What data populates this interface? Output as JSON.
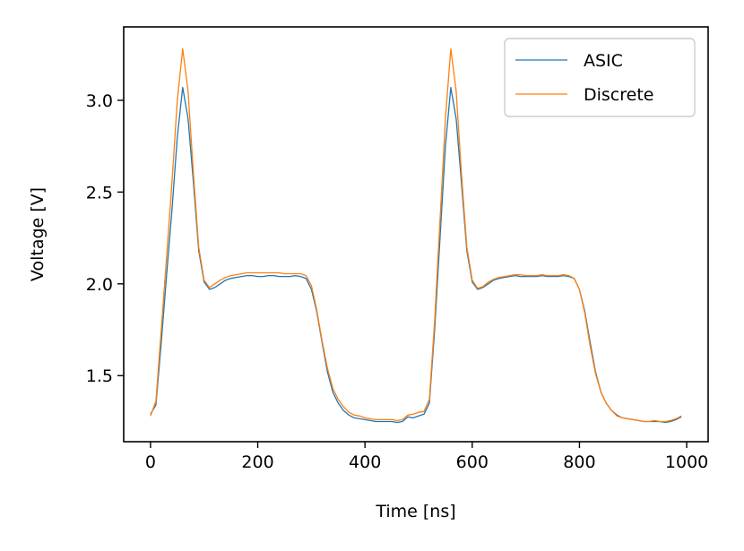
{
  "chart_data": {
    "type": "line",
    "xlabel": "Time [ns]",
    "ylabel": "Voltage [V]",
    "xlim": [
      -50,
      1040
    ],
    "ylim": [
      1.14,
      3.4
    ],
    "xticks": [
      0,
      200,
      400,
      600,
      800,
      1000
    ],
    "yticks": [
      1.5,
      2.0,
      2.5,
      3.0
    ],
    "xtick_labels": [
      "0",
      "200",
      "400",
      "600",
      "800",
      "1000"
    ],
    "ytick_labels": [
      "1.5",
      "2.0",
      "2.5",
      "3.0"
    ],
    "legend_position": "top-right",
    "grid": false,
    "series": [
      {
        "name": "ASIC",
        "color": "#1f77b4",
        "x": [
          0,
          10,
          20,
          30,
          40,
          50,
          60,
          70,
          80,
          90,
          100,
          110,
          120,
          130,
          140,
          150,
          160,
          170,
          180,
          190,
          200,
          210,
          220,
          230,
          240,
          250,
          260,
          270,
          280,
          290,
          300,
          310,
          320,
          330,
          340,
          350,
          360,
          370,
          380,
          390,
          400,
          410,
          420,
          430,
          440,
          450,
          460,
          470,
          480,
          490,
          500,
          510,
          520,
          530,
          540,
          550,
          560,
          570,
          580,
          590,
          600,
          610,
          620,
          630,
          640,
          650,
          660,
          670,
          680,
          690,
          700,
          710,
          720,
          730,
          740,
          750,
          760,
          770,
          780,
          790,
          800,
          810,
          820,
          830,
          840,
          850,
          860,
          870,
          880,
          890,
          900,
          910,
          920,
          930,
          940,
          950,
          960,
          970,
          980,
          990
        ],
        "y": [
          1.29,
          1.34,
          1.68,
          2.05,
          2.4,
          2.8,
          3.07,
          2.9,
          2.55,
          2.18,
          2.01,
          1.97,
          1.98,
          2.0,
          2.02,
          2.03,
          2.035,
          2.04,
          2.045,
          2.045,
          2.04,
          2.04,
          2.045,
          2.045,
          2.04,
          2.04,
          2.04,
          2.045,
          2.04,
          2.03,
          1.97,
          1.85,
          1.68,
          1.52,
          1.41,
          1.35,
          1.31,
          1.285,
          1.27,
          1.265,
          1.26,
          1.255,
          1.25,
          1.25,
          1.25,
          1.25,
          1.245,
          1.25,
          1.275,
          1.27,
          1.28,
          1.29,
          1.35,
          1.75,
          2.25,
          2.75,
          3.07,
          2.9,
          2.55,
          2.18,
          2.01,
          1.97,
          1.98,
          2.0,
          2.02,
          2.03,
          2.035,
          2.04,
          2.045,
          2.04,
          2.04,
          2.04,
          2.04,
          2.045,
          2.04,
          2.04,
          2.04,
          2.045,
          2.04,
          2.03,
          1.97,
          1.85,
          1.68,
          1.52,
          1.41,
          1.35,
          1.31,
          1.285,
          1.27,
          1.265,
          1.26,
          1.255,
          1.25,
          1.25,
          1.25,
          1.25,
          1.245,
          1.25,
          1.26,
          1.275
        ]
      },
      {
        "name": "Discrete",
        "color": "#ff7f0e",
        "x": [
          0,
          10,
          20,
          30,
          40,
          50,
          60,
          70,
          80,
          90,
          100,
          110,
          120,
          130,
          140,
          150,
          160,
          170,
          180,
          190,
          200,
          210,
          220,
          230,
          240,
          250,
          260,
          270,
          280,
          290,
          300,
          310,
          320,
          330,
          340,
          350,
          360,
          370,
          380,
          390,
          400,
          410,
          420,
          430,
          440,
          450,
          460,
          470,
          480,
          490,
          500,
          510,
          520,
          530,
          540,
          550,
          560,
          570,
          580,
          590,
          600,
          610,
          620,
          630,
          640,
          650,
          660,
          670,
          680,
          690,
          700,
          710,
          720,
          730,
          740,
          750,
          760,
          770,
          780,
          790,
          800,
          810,
          820,
          830,
          840,
          850,
          860,
          870,
          880,
          890,
          900,
          910,
          920,
          930,
          940,
          950,
          960,
          970,
          980,
          990
        ],
        "y": [
          1.28,
          1.36,
          1.75,
          2.15,
          2.55,
          3.0,
          3.28,
          3.05,
          2.6,
          2.2,
          2.02,
          1.98,
          2.0,
          2.02,
          2.035,
          2.045,
          2.05,
          2.055,
          2.06,
          2.06,
          2.06,
          2.06,
          2.06,
          2.06,
          2.06,
          2.055,
          2.055,
          2.055,
          2.055,
          2.045,
          1.99,
          1.86,
          1.69,
          1.54,
          1.43,
          1.37,
          1.33,
          1.3,
          1.285,
          1.28,
          1.27,
          1.265,
          1.26,
          1.26,
          1.26,
          1.26,
          1.255,
          1.26,
          1.285,
          1.29,
          1.3,
          1.305,
          1.37,
          1.8,
          2.35,
          2.9,
          3.28,
          3.05,
          2.6,
          2.2,
          2.02,
          1.975,
          1.985,
          2.01,
          2.025,
          2.035,
          2.04,
          2.045,
          2.05,
          2.05,
          2.045,
          2.045,
          2.045,
          2.05,
          2.045,
          2.045,
          2.045,
          2.05,
          2.045,
          2.03,
          1.97,
          1.84,
          1.66,
          1.51,
          1.41,
          1.35,
          1.31,
          1.28,
          1.27,
          1.265,
          1.26,
          1.255,
          1.25,
          1.25,
          1.255,
          1.25,
          1.25,
          1.255,
          1.265,
          1.28
        ]
      }
    ]
  }
}
